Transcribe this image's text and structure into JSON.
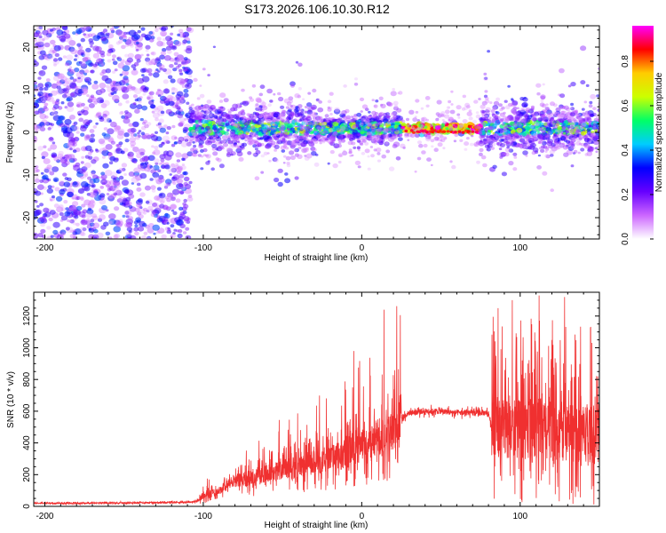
{
  "title": "S173.2026.106.10.30.R12",
  "chart_data": [
    {
      "type": "heatmap",
      "xlabel": "Height of straight line (km)",
      "ylabel": "Frequency (Hz)",
      "xlim": [
        -207,
        150
      ],
      "ylim": [
        -25,
        25
      ],
      "xticks": [
        -200,
        -100,
        0,
        100
      ],
      "xtick_labels": [
        "-200",
        "-100",
        "0",
        "100"
      ],
      "yticks": [
        -20,
        -10,
        0,
        10,
        20
      ],
      "ytick_labels": [
        "-20",
        "-10",
        "0",
        "10",
        "20"
      ],
      "colorbar": {
        "label": "Normalized spectral amplitude",
        "range": [
          0,
          0.96
        ],
        "ticks": [
          0.0,
          0.2,
          0.4,
          0.6,
          0.8
        ],
        "tick_labels": [
          "0.0",
          "0.2",
          "0.4",
          "0.6",
          "0.8"
        ],
        "colors": [
          "#ffffff",
          "#cc66ff",
          "#6600ff",
          "#0000ff",
          "#00ccff",
          "#00ff66",
          "#ccff00",
          "#ffcc00",
          "#ff0000",
          "#ff00ff"
        ]
      },
      "description_points": [
        {
          "x": -150,
          "freq_spread": 25,
          "amp": 0.25
        },
        {
          "x": -100,
          "freq_center": 1,
          "freq_spread": 5,
          "amp": 0.35
        },
        {
          "x": -50,
          "freq_center": 1,
          "freq_spread": 6,
          "amp": 0.35
        },
        {
          "x": 0,
          "freq_center": 1,
          "freq_spread": 3,
          "amp": 0.45
        },
        {
          "x": 50,
          "freq_center": 0,
          "freq_spread": 1,
          "amp": 0.9
        },
        {
          "x": 100,
          "freq_center": 1,
          "freq_spread": 5,
          "amp": 0.35
        },
        {
          "x": 150,
          "freq_center": 1,
          "freq_spread": 5,
          "amp": 0.35
        }
      ]
    },
    {
      "type": "line",
      "xlabel": "Height of straight line (km)",
      "ylabel": "SNR (10 * v/v)",
      "xlim": [
        -207,
        150
      ],
      "ylim": [
        0,
        1350
      ],
      "xticks": [
        -200,
        -100,
        0,
        100
      ],
      "xtick_labels": [
        "-200",
        "-100",
        "0",
        "100"
      ],
      "yticks": [
        0,
        200,
        400,
        600,
        800,
        1000,
        1200
      ],
      "ytick_labels": [
        "0",
        "200",
        "400",
        "600",
        "800",
        "1000",
        "1200"
      ],
      "color": "#f03030",
      "x": [
        -207,
        -180,
        -150,
        -120,
        -105,
        -100,
        -90,
        -80,
        -70,
        -60,
        -50,
        -40,
        -30,
        -20,
        -10,
        0,
        10,
        20,
        25,
        30,
        40,
        50,
        60,
        70,
        80,
        82,
        90,
        100,
        110,
        120,
        130,
        140,
        150
      ],
      "y": [
        20,
        20,
        22,
        25,
        28,
        60,
        100,
        160,
        180,
        210,
        230,
        250,
        280,
        300,
        330,
        380,
        420,
        480,
        560,
        590,
        600,
        600,
        590,
        590,
        590,
        500,
        500,
        480,
        500,
        480,
        470,
        470,
        450
      ],
      "peaks": [
        {
          "x": -5,
          "y": 980
        },
        {
          "x": 14,
          "y": 1240
        },
        {
          "x": 86,
          "y": 1250
        },
        {
          "x": 95,
          "y": 1300
        },
        {
          "x": 112,
          "y": 1330
        },
        {
          "x": 128,
          "y": 1320
        }
      ]
    }
  ]
}
